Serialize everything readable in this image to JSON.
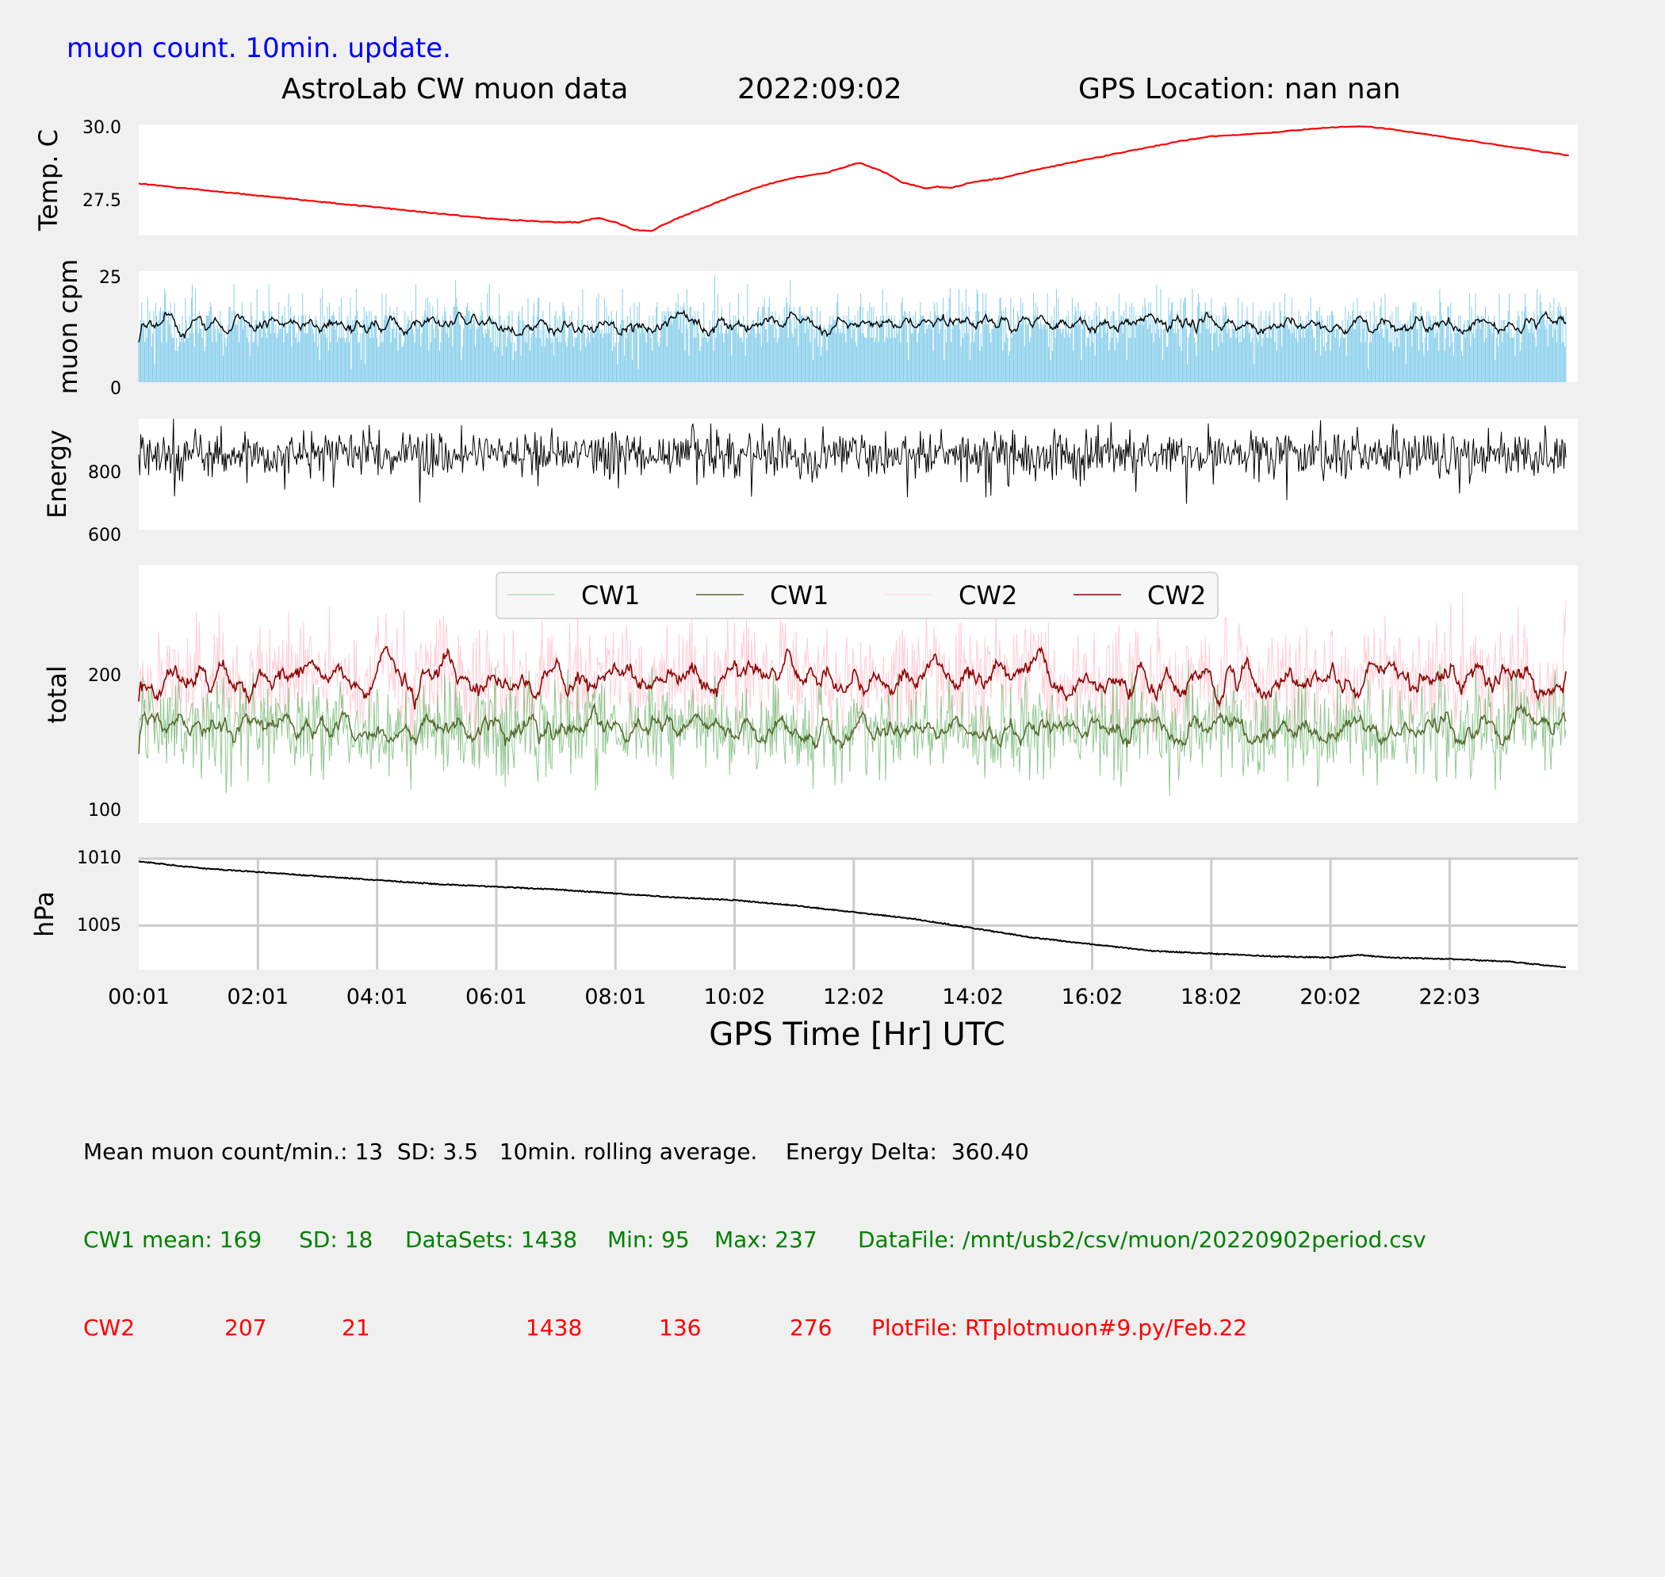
{
  "header": {
    "update_note": "muon count.  10min. update.",
    "title": "AstroLab CW muon data",
    "date": "2022:09:02",
    "gps_location": "GPS Location: nan   nan"
  },
  "x_axis": {
    "label": "GPS Time  [Hr] UTC",
    "tick_labels": [
      "00:01",
      "02:01",
      "04:01",
      "06:01",
      "08:01",
      "10:02",
      "12:02",
      "14:02",
      "16:02",
      "18:02",
      "20:02",
      "22:03"
    ]
  },
  "chart_data": [
    {
      "id": "temperature",
      "type": "line",
      "ylabel": "Temp. C",
      "yticks": [
        "30.0",
        "27.5"
      ],
      "ylim": [
        26.25,
        30.0
      ],
      "color": "#ff0000",
      "x_hours": [
        0,
        1,
        2,
        3,
        4,
        5,
        6,
        7,
        7.4,
        7.7,
        8.0,
        8.3,
        8.6,
        9.0,
        9.5,
        10.0,
        10.5,
        11.0,
        11.5,
        11.9,
        12.1,
        12.5,
        12.8,
        13.2,
        13.4,
        13.6,
        14.0,
        14.5,
        15.0,
        15.5,
        16.0,
        16.5,
        17.0,
        17.5,
        18.0,
        18.5,
        19.0,
        19.5,
        20.0,
        20.5,
        21.0,
        22.0,
        23.0,
        24.0
      ],
      "values": [
        28.0,
        27.8,
        27.6,
        27.4,
        27.2,
        27.0,
        26.8,
        26.7,
        26.7,
        26.85,
        26.7,
        26.45,
        26.4,
        26.8,
        27.2,
        27.6,
        27.95,
        28.2,
        28.35,
        28.6,
        28.7,
        28.4,
        28.05,
        27.85,
        27.9,
        27.85,
        28.05,
        28.2,
        28.45,
        28.65,
        28.85,
        29.05,
        29.25,
        29.45,
        29.6,
        29.65,
        29.72,
        29.82,
        29.9,
        29.95,
        29.85,
        29.55,
        29.25,
        28.95
      ]
    },
    {
      "id": "muon_cpm",
      "type": "bar+line",
      "ylabel": "muon cpm",
      "yticks": [
        "25",
        "0"
      ],
      "ylim": [
        0,
        25
      ],
      "bar_color": "#87ceeb",
      "line_color": "#000000",
      "n_points": 1438,
      "mean": 13,
      "sd": 3.5,
      "rolling_window_min": 10
    },
    {
      "id": "energy",
      "type": "line",
      "ylabel": "Energy",
      "yticks": [
        "800",
        "600"
      ],
      "ylim": [
        600,
        960
      ],
      "color": "#000000",
      "n_points": 1438,
      "mean": 845,
      "min": 600,
      "max": 960
    },
    {
      "id": "total",
      "type": "line",
      "ylabel": "total",
      "yticks": [
        "200",
        "100"
      ],
      "ylim": [
        100,
        290
      ],
      "legend": [
        "CW1",
        "CW1",
        "CW2",
        "CW2"
      ],
      "series": [
        {
          "name": "CW1",
          "style": "raw",
          "color": "#6ab46a",
          "mean": 169,
          "sd": 18,
          "min": 95,
          "max": 237
        },
        {
          "name": "CW1",
          "style": "rolling",
          "color": "#556b2f",
          "mean": 169
        },
        {
          "name": "CW2",
          "style": "raw",
          "color": "#ffc0cb",
          "mean": 207,
          "sd": 21,
          "min": 136,
          "max": 276
        },
        {
          "name": "CW2",
          "style": "rolling",
          "color": "#8b0000",
          "mean": 207
        }
      ]
    },
    {
      "id": "pressure",
      "type": "line",
      "ylabel": "hPa",
      "yticks": [
        "1010",
        "1005"
      ],
      "ylim": [
        1001.7,
        1010.0
      ],
      "color": "#000000",
      "grid": true,
      "x_hours": [
        0,
        1,
        2,
        3,
        4,
        5,
        6,
        7,
        8,
        9,
        10,
        11,
        12,
        13,
        14,
        15,
        16,
        17,
        18,
        19,
        20,
        20.5,
        21,
        22,
        23,
        23.9
      ],
      "values": [
        1009.8,
        1009.3,
        1009.0,
        1008.7,
        1008.4,
        1008.1,
        1007.9,
        1007.7,
        1007.4,
        1007.1,
        1006.9,
        1006.5,
        1006.0,
        1005.5,
        1004.8,
        1004.1,
        1003.6,
        1003.1,
        1002.9,
        1002.7,
        1002.6,
        1002.8,
        1002.6,
        1002.5,
        1002.3,
        1001.9
      ]
    }
  ],
  "stats": {
    "muon_line": "Mean muon count/min.: 13  SD: 3.5   10min. rolling average.    Energy Delta:  360.40",
    "cw1": {
      "label": "CW1 mean: 169",
      "sd": "SD: 18",
      "datasets": "DataSets: 1438",
      "min": "Min: 95",
      "max": "Max: 237",
      "file": "DataFile: /mnt/usb2/csv/muon/20220902period.csv",
      "color": "#008000"
    },
    "cw2": {
      "label": "CW2",
      "mean": "207",
      "sd": "21",
      "datasets": "1438",
      "min": "136",
      "max": "276",
      "file": "PlotFile: RTplotmuon#9.py/Feb.22",
      "color": "#ff0000"
    }
  }
}
